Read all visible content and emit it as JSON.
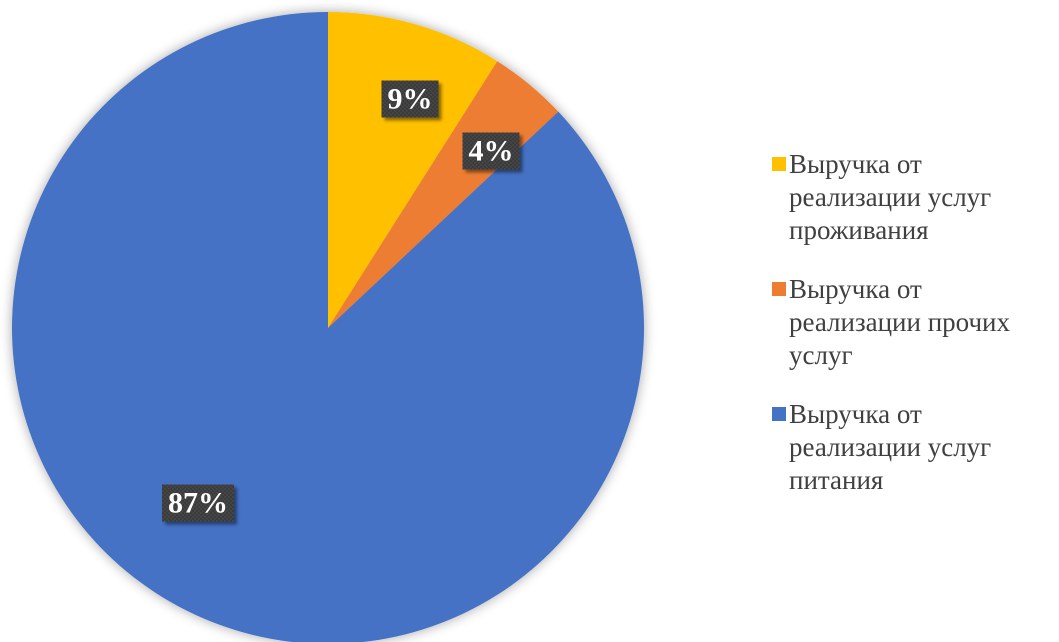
{
  "chart_data": {
    "type": "pie",
    "title": "",
    "categories": [
      "Выручка от реализации услуг проживания",
      "Выручка от реализации прочих услуг",
      "Выручка от реализации услуг питания"
    ],
    "values": [
      9,
      4,
      87
    ],
    "data_labels": [
      "9%",
      "4%",
      "87%"
    ],
    "colors": [
      "#FFC000",
      "#ED7D31",
      "#4472C4"
    ],
    "start_angle_deg": 0,
    "direction": "clockwise",
    "legend_position": "right"
  },
  "legend": {
    "items": [
      {
        "label": "Выручка от реализации услуг проживания",
        "color": "#FFC000"
      },
      {
        "label": "Выручка от реализации прочих услуг",
        "color": "#ED7D31"
      },
      {
        "label": "Выручка от реализации услуг питания",
        "color": "#4472C4"
      }
    ]
  }
}
